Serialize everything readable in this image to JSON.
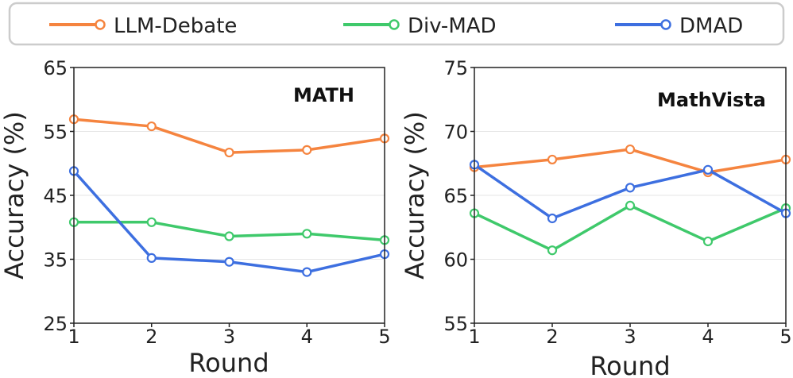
{
  "legend": [
    {
      "name": "LLM-Debate",
      "color": "#f5843f"
    },
    {
      "name": "Div-MAD",
      "color": "#3fc96b"
    },
    {
      "name": "DMAD",
      "color": "#3d6fe0"
    }
  ],
  "chart_data": [
    {
      "type": "line",
      "title": "MATH",
      "xlabel": "Round",
      "ylabel": "Accuracy (%)",
      "x": [
        1,
        2,
        3,
        4,
        5
      ],
      "ylim": [
        25,
        65
      ],
      "yticks": [
        25,
        35,
        45,
        55,
        65
      ],
      "grid": true,
      "series": [
        {
          "name": "LLM-Debate",
          "values": [
            56.9,
            55.8,
            51.7,
            52.1,
            53.9
          ]
        },
        {
          "name": "Div-MAD",
          "values": [
            40.8,
            40.8,
            38.6,
            39.0,
            38.0
          ]
        },
        {
          "name": "DMAD",
          "values": [
            48.8,
            35.2,
            34.6,
            33.0,
            35.8
          ]
        }
      ]
    },
    {
      "type": "line",
      "title": "MathVista",
      "xlabel": "Round",
      "ylabel": "Accuracy (%)",
      "x": [
        1,
        2,
        3,
        4,
        5
      ],
      "ylim": [
        55,
        75
      ],
      "yticks": [
        55,
        60,
        65,
        70,
        75
      ],
      "grid": true,
      "series": [
        {
          "name": "LLM-Debate",
          "values": [
            67.2,
            67.8,
            68.6,
            66.8,
            67.8
          ]
        },
        {
          "name": "Div-MAD",
          "values": [
            63.6,
            60.7,
            64.2,
            61.4,
            64.0
          ]
        },
        {
          "name": "DMAD",
          "values": [
            67.4,
            63.2,
            65.6,
            67.0,
            63.6
          ]
        }
      ]
    }
  ]
}
